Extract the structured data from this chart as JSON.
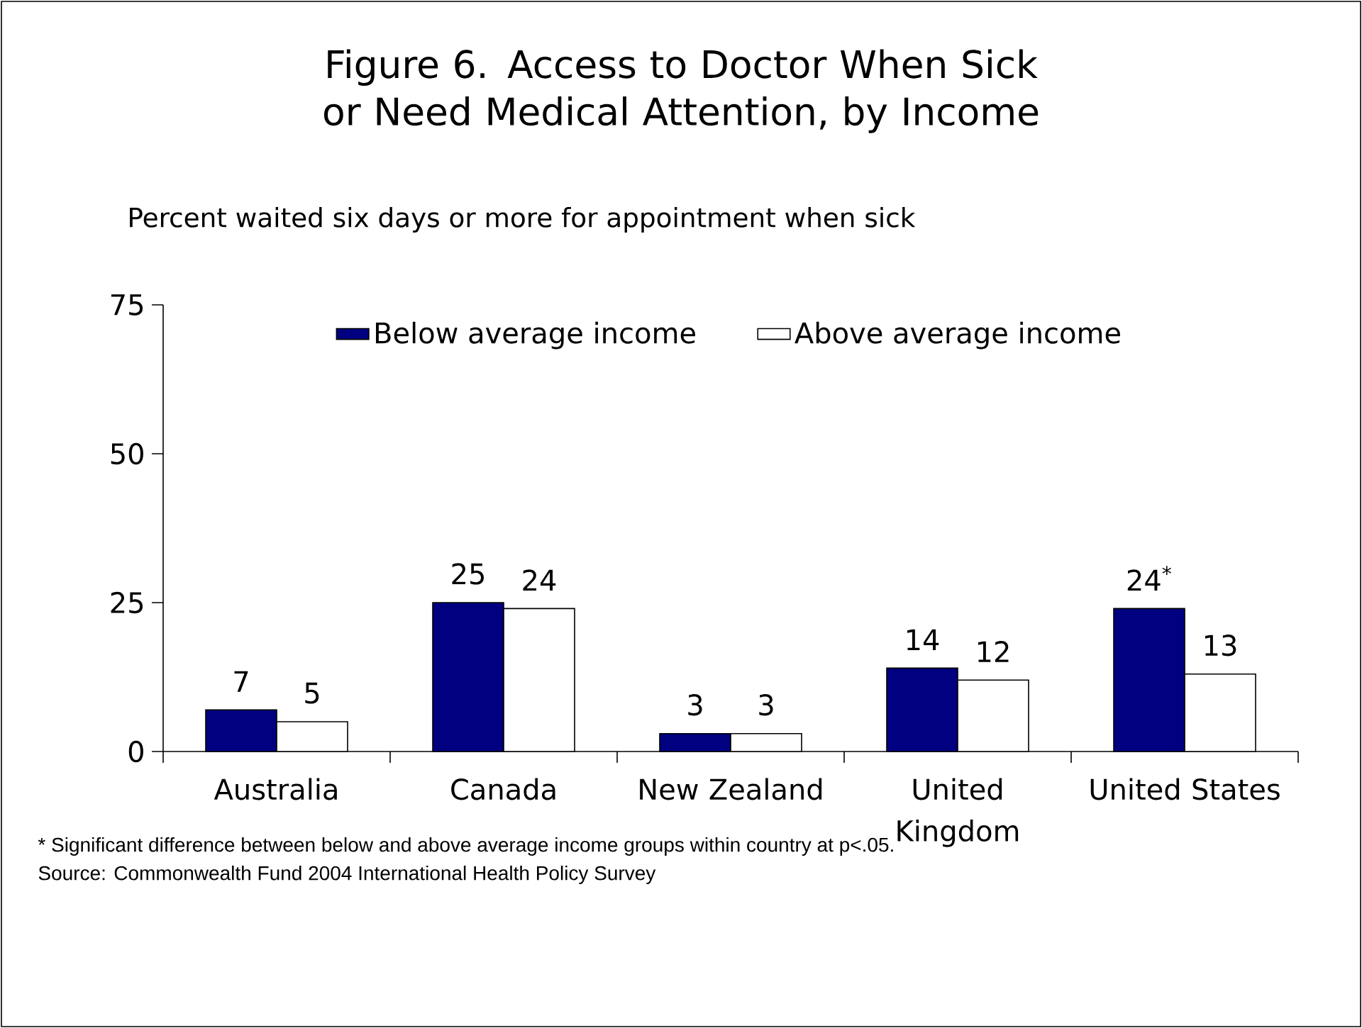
{
  "chart_data": {
    "type": "bar",
    "title": "Figure 6. Access to Doctor When Sick or Need Medical Attention, by Income",
    "subtitle": "Percent waited six days or more for appointment when sick",
    "categories": [
      "Australia",
      "Canada",
      "New Zealand",
      "United Kingdom",
      "United States"
    ],
    "series": [
      {
        "name": "Below average income",
        "color": "#000080",
        "values": [
          7,
          25,
          3,
          14,
          24
        ],
        "value_labels": [
          "7",
          "25",
          "3",
          "14",
          "24$^{*}$"
        ]
      },
      {
        "name": "Above average income",
        "color": "#ffffff",
        "values": [
          5,
          24,
          3,
          12,
          13
        ],
        "value_labels": [
          "5",
          "24",
          "3",
          "12",
          "13"
        ]
      }
    ],
    "ylim": [
      0,
      75
    ],
    "yticks": [
      0,
      25,
      50,
      75
    ],
    "legend": "top",
    "grid": false,
    "annotations": [
      "* Significant difference between below and above average income groups within country at p<.05.",
      "Source: Commonwealth Fund 2004 International Health Policy Survey"
    ]
  }
}
